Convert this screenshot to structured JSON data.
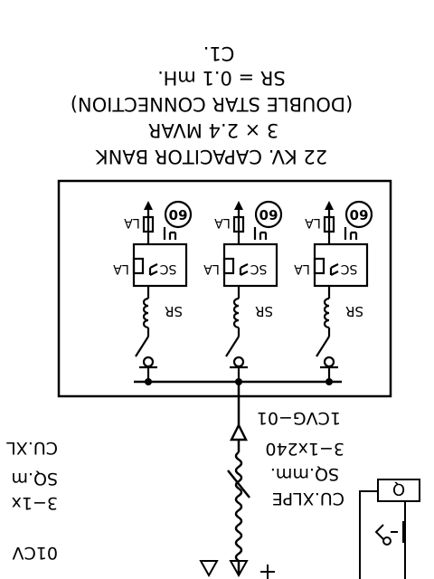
{
  "title_block": {
    "line1": "22 KV. CAPACITOR BANK",
    "line2": "3 × 2.4 MVAR",
    "line3": "(DOUBLE STAR CONNECTION)",
    "line4": "SR = 0.1 mH.",
    "line5": "C1."
  },
  "branch_labels": {
    "relay": "60",
    "lightning_arrester": "LA",
    "surge_capacitor": "SC",
    "series_reactor": "SR"
  },
  "cable": {
    "line1": "CU.XLPE",
    "line2": "SQ.mm.",
    "line3": "3−1x240",
    "line4": "1CVG−01"
  },
  "left_cable": {
    "line1": "CU.XL",
    "line2": "SQ.m",
    "line3": "3−1x",
    "line4": "01CV"
  },
  "right_box_label": "Q"
}
